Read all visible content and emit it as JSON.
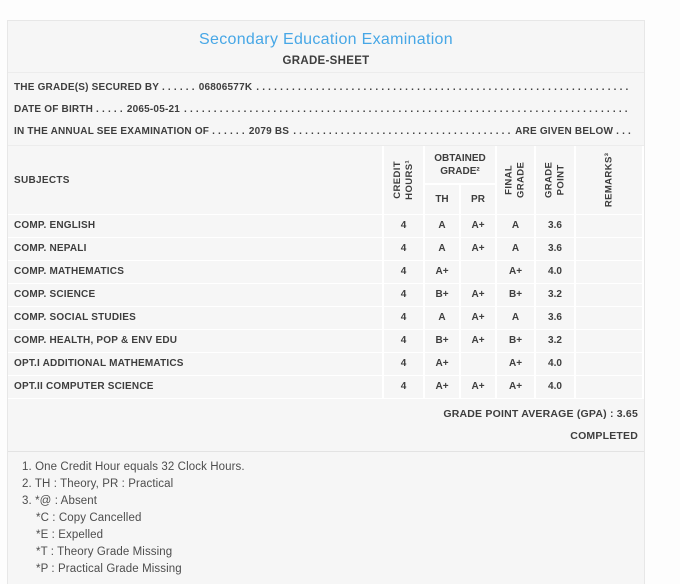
{
  "header": {
    "title": "Secondary Education Examination",
    "subtitle": "GRADE-SHEET"
  },
  "info": {
    "filler": ". . . . . . . . . . . . . . . . . . . . . . . . . . . . . . . . . . . . . . . . . . . . . . . . . . . . . . . . . . . . . . . . . . . . . . . . . . . . . . . . . . . . . . . . . . . . . . . . . . . . . . . . . . . . . .",
    "lines": [
      {
        "prefix": "THE GRADE(S) SECURED BY . . . . . .",
        "value": "06806577K",
        "suffix": ""
      },
      {
        "prefix": "DATE OF BIRTH . . . . .",
        "value": "2065-05-21",
        "suffix": ""
      },
      {
        "prefix": "IN THE ANNUAL SEE EXAMINATION OF . . . . . .",
        "value": "2079 BS",
        "suffix": "ARE GIVEN BELOW . . ."
      }
    ]
  },
  "table": {
    "headers": {
      "subjects": "SUBJECTS",
      "credit_hours": "CREDIT\nHOURS¹",
      "obtained_grade": "OBTAINED\nGRADE²",
      "th": "TH",
      "pr": "PR",
      "final_grade": "FINAL\nGRADE",
      "grade_point": "GRADE\nPOINT",
      "remarks": "REMARKS³"
    },
    "rows": [
      {
        "subject": "COMP. ENGLISH",
        "credit": "4",
        "th": "A",
        "pr": "A+",
        "final": "A",
        "point": "3.6",
        "remarks": ""
      },
      {
        "subject": "COMP. NEPALI",
        "credit": "4",
        "th": "A",
        "pr": "A+",
        "final": "A",
        "point": "3.6",
        "remarks": ""
      },
      {
        "subject": "COMP. MATHEMATICS",
        "credit": "4",
        "th": "A+",
        "pr": "",
        "final": "A+",
        "point": "4.0",
        "remarks": ""
      },
      {
        "subject": "COMP. SCIENCE",
        "credit": "4",
        "th": "B+",
        "pr": "A+",
        "final": "B+",
        "point": "3.2",
        "remarks": ""
      },
      {
        "subject": "COMP. SOCIAL STUDIES",
        "credit": "4",
        "th": "A",
        "pr": "A+",
        "final": "A",
        "point": "3.6",
        "remarks": ""
      },
      {
        "subject": "COMP. HEALTH, POP & ENV EDU",
        "credit": "4",
        "th": "B+",
        "pr": "A+",
        "final": "B+",
        "point": "3.2",
        "remarks": ""
      },
      {
        "subject": "OPT.I ADDITIONAL MATHEMATICS",
        "credit": "4",
        "th": "A+",
        "pr": "",
        "final": "A+",
        "point": "4.0",
        "remarks": ""
      },
      {
        "subject": "OPT.II COMPUTER SCIENCE",
        "credit": "4",
        "th": "A+",
        "pr": "A+",
        "final": "A+",
        "point": "4.0",
        "remarks": ""
      }
    ]
  },
  "summary": {
    "gpa_line": "GRADE POINT AVERAGE (GPA) : 3.65",
    "status": "COMPLETED"
  },
  "footnotes": [
    {
      "text": "1. One Credit Hour equals 32 Clock Hours.",
      "indent": false
    },
    {
      "text": "2. TH : Theory, PR : Practical",
      "indent": false
    },
    {
      "text": "3. *@ : Absent",
      "indent": false
    },
    {
      "text": "*C : Copy Cancelled",
      "indent": true
    },
    {
      "text": "*E : Expelled",
      "indent": true
    },
    {
      "text": "*T : Theory Grade Missing",
      "indent": true
    },
    {
      "text": "*P : Practical Grade Missing",
      "indent": true
    }
  ],
  "colors": {
    "title_blue": "#47a7e6",
    "text_dark": "#3e3e3e",
    "footnote_text": "#4d4d4d",
    "doc_bg": "#f6f6f6",
    "page_bg": "#fdfdfd",
    "grid_white": "#ffffff",
    "border_light": "#e7e7e7"
  }
}
